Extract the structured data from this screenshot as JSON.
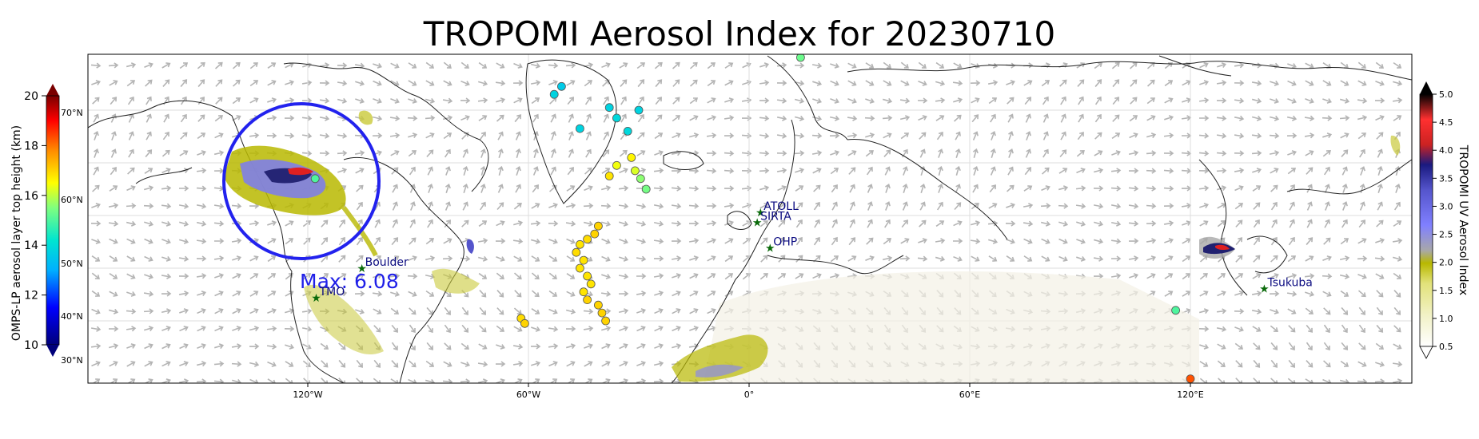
{
  "title": "TROPOMI Aerosol Index for 20230710",
  "map": {
    "lon_ticks": [
      {
        "lon": -120,
        "label": "120°W"
      },
      {
        "lon": -60,
        "label": "60°W"
      },
      {
        "lon": 0,
        "label": "0°"
      },
      {
        "lon": 60,
        "label": "60°E"
      },
      {
        "lon": 120,
        "label": "120°E"
      }
    ],
    "lat_labels": [
      {
        "lat": 70,
        "label": "70°N"
      },
      {
        "lat": 60,
        "label": "60°N"
      },
      {
        "lat": 50,
        "label": "50°N"
      },
      {
        "lat": 40,
        "label": "40°N"
      },
      {
        "lat": 30,
        "label": "30°N"
      }
    ],
    "max_annotation": "Max: 6.08",
    "highlight_region": "western Canada smoke plume",
    "stations": [
      {
        "name": "TMO",
        "lon": -117.7,
        "lat": 34.4
      },
      {
        "name": "Boulder",
        "lon": -105.3,
        "lat": 40.0
      },
      {
        "name": "ATOLL",
        "lon": 3.1,
        "lat": 50.6
      },
      {
        "name": "SIRTA",
        "lon": 2.2,
        "lat": 48.7
      },
      {
        "name": "OHP",
        "lon": 5.7,
        "lat": 43.9
      },
      {
        "name": "Tsukuba",
        "lon": 140.1,
        "lat": 36.1
      }
    ],
    "omps_points": [
      {
        "lon": -53,
        "lat": 73,
        "h": 13.8
      },
      {
        "lon": -51,
        "lat": 74.5,
        "h": 13.6
      },
      {
        "lon": -46,
        "lat": 66.5,
        "h": 13.8
      },
      {
        "lon": -38,
        "lat": 70.5,
        "h": 13.8
      },
      {
        "lon": -36,
        "lat": 68.5,
        "h": 13.9
      },
      {
        "lon": -33,
        "lat": 66,
        "h": 13.9
      },
      {
        "lon": -30,
        "lat": 70,
        "h": 13.8
      },
      {
        "lon": -32,
        "lat": 61,
        "h": 16.6
      },
      {
        "lon": -38,
        "lat": 57.5,
        "h": 16.8
      },
      {
        "lon": -36,
        "lat": 59.5,
        "h": 16.4
      },
      {
        "lon": -31,
        "lat": 58.5,
        "h": 16.2
      },
      {
        "lon": -29.5,
        "lat": 57,
        "h": 15.6
      },
      {
        "lon": -28,
        "lat": 55,
        "h": 15.4
      },
      {
        "lon": -41,
        "lat": 48,
        "h": 17.0
      },
      {
        "lon": -42,
        "lat": 46.5,
        "h": 17.0
      },
      {
        "lon": -44,
        "lat": 45.5,
        "h": 16.9
      },
      {
        "lon": -46,
        "lat": 44.5,
        "h": 16.8
      },
      {
        "lon": -47,
        "lat": 43,
        "h": 16.9
      },
      {
        "lon": -45,
        "lat": 41.5,
        "h": 16.8
      },
      {
        "lon": -46,
        "lat": 40,
        "h": 16.8
      },
      {
        "lon": -44,
        "lat": 38.5,
        "h": 16.8
      },
      {
        "lon": -43,
        "lat": 37,
        "h": 16.8
      },
      {
        "lon": -45,
        "lat": 35.5,
        "h": 16.8
      },
      {
        "lon": -44,
        "lat": 34,
        "h": 17.0
      },
      {
        "lon": -41,
        "lat": 33,
        "h": 17.0
      },
      {
        "lon": -40,
        "lat": 31.5,
        "h": 17.0
      },
      {
        "lon": -39,
        "lat": 30,
        "h": 17.0
      },
      {
        "lon": -62,
        "lat": 30.5,
        "h": 16.9
      },
      {
        "lon": -61,
        "lat": 29.5,
        "h": 17.0
      },
      {
        "lon": 14,
        "lat": 80,
        "h": 15.3
      },
      {
        "lon": 12,
        "lat": 82,
        "h": 15.0
      },
      {
        "lon": 116,
        "lat": 32,
        "h": 15.0
      },
      {
        "lon": 120,
        "lat": 19,
        "h": 18.3
      },
      {
        "lon": -118,
        "lat": 57,
        "h": 15.0
      }
    ]
  },
  "left_colorbar": {
    "label": "OMPS-LP aerosol layer top height (km)",
    "ticks": [
      "20",
      "18",
      "16",
      "14",
      "12",
      "10"
    ],
    "min": 10,
    "max": 20
  },
  "right_colorbar": {
    "label": "TROPOMI UV Aerosol Index",
    "ticks": [
      "5.0",
      "4.5",
      "4.0",
      "3.5",
      "3.0",
      "2.5",
      "2.0",
      "1.5",
      "1.0",
      "0.5"
    ],
    "min": 0.5,
    "max": 5.0
  }
}
